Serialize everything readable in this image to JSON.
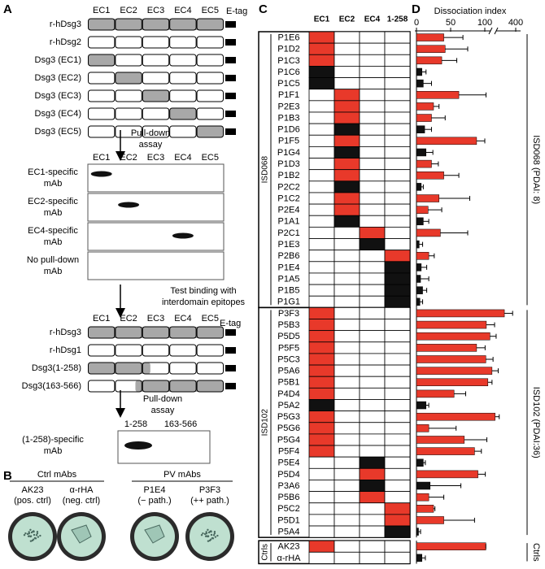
{
  "panel_labels": [
    "A",
    "B",
    "C",
    "D"
  ],
  "panel_a": {
    "domains": [
      "EC1",
      "EC2",
      "EC3",
      "EC4",
      "EC5"
    ],
    "tag": "E-tag",
    "constructs": [
      "r-hDsg3",
      "r-hDsg2",
      "Dsg3 (EC1)",
      "Dsg3 (EC2)",
      "Dsg3 (EC3)",
      "Dsg3 (EC4)",
      "Dsg3 (EC5)"
    ],
    "step1": [
      "Pull-down",
      "assay"
    ],
    "blot_rows": [
      [
        "EC1-specific",
        "mAb"
      ],
      [
        "EC2-specific",
        "mAb"
      ],
      [
        "EC4-specific",
        "mAb"
      ],
      [
        "No pull-down",
        "mAb"
      ]
    ],
    "step2": [
      "Test binding with",
      "interdomain epitopes"
    ],
    "constructs2": [
      "r-hDsg3",
      "r-hDsg1",
      "Dsg3(1-258)",
      "Dsg3(163-566)"
    ],
    "step3": [
      "Pull-down",
      "assay"
    ],
    "blot2_lanes": [
      "1-258",
      "163-566"
    ],
    "blot2_row": [
      "(1-258)-specific",
      "mAb"
    ]
  },
  "panel_b": [
    {
      "title": "Ctrl mAbs",
      "dishes": [
        {
          "name": "AK23",
          "note": "(pos. ctrl)"
        },
        {
          "name": "α-rHA",
          "note": "(neg. ctrl)"
        }
      ]
    },
    {
      "title": "PV mAbs",
      "dishes": [
        {
          "name": "P1E4",
          "note": "(− path.)"
        },
        {
          "name": "P3F3",
          "note": "(++ path.)"
        }
      ]
    }
  ],
  "panel_c": {
    "columns": [
      "EC1",
      "EC2",
      "EC4",
      "1-258"
    ]
  },
  "panel_d": {
    "title": "Dissociation index",
    "ticks": [
      0,
      50,
      100,
      400
    ]
  },
  "groups": [
    {
      "name": "ISD068",
      "label": "ISD068 (PDAI: 8)",
      "rows": [
        {
          "name": "P1E6",
          "epitope": "EC1",
          "color": "#e8392a",
          "index": 40,
          "error": 28
        },
        {
          "name": "P1D2",
          "epitope": "EC1",
          "color": "#e8392a",
          "index": 42,
          "error": 33
        },
        {
          "name": "P1C3",
          "epitope": "EC1",
          "color": "#e8392a",
          "index": 37,
          "error": 22
        },
        {
          "name": "P1C6",
          "epitope": "EC1",
          "color": "#111111",
          "index": 8,
          "error": 6
        },
        {
          "name": "P1C5",
          "epitope": "EC1",
          "color": "#111111",
          "index": 10,
          "error": 12
        },
        {
          "name": "P1F1",
          "epitope": "EC2",
          "color": "#e8392a",
          "index": 62,
          "error": 50
        },
        {
          "name": "P2E3",
          "epitope": "EC2",
          "color": "#e8392a",
          "index": 25,
          "error": 8
        },
        {
          "name": "P1B3",
          "epitope": "EC2",
          "color": "#e8392a",
          "index": 22,
          "error": 20
        },
        {
          "name": "P1D6",
          "epitope": "EC2",
          "color": "#111111",
          "index": 12,
          "error": 10
        },
        {
          "name": "P1F5",
          "epitope": "EC2",
          "color": "#e8392a",
          "index": 88,
          "error": 12
        },
        {
          "name": "P1G4",
          "epitope": "EC2",
          "color": "#111111",
          "index": 14,
          "error": 10
        },
        {
          "name": "P1D3",
          "epitope": "EC2",
          "color": "#e8392a",
          "index": 22,
          "error": 10
        },
        {
          "name": "P1B2",
          "epitope": "EC2",
          "color": "#e8392a",
          "index": 40,
          "error": 22
        },
        {
          "name": "P2C2",
          "epitope": "EC2",
          "color": "#111111",
          "index": 7,
          "error": 3
        },
        {
          "name": "P1C2",
          "epitope": "EC2",
          "color": "#e8392a",
          "index": 33,
          "error": 45
        },
        {
          "name": "P2E4",
          "epitope": "EC2",
          "color": "#e8392a",
          "index": 17,
          "error": 20
        },
        {
          "name": "P1A1",
          "epitope": "EC2",
          "color": "#111111",
          "index": 10,
          "error": 8
        },
        {
          "name": "P2C1",
          "epitope": "EC4",
          "color": "#e8392a",
          "index": 35,
          "error": 40
        },
        {
          "name": "P1E3",
          "epitope": "EC4",
          "color": "#111111",
          "index": 4,
          "error": 5
        },
        {
          "name": "P2B6",
          "epitope": "1-258",
          "color": "#e8392a",
          "index": 18,
          "error": 8
        },
        {
          "name": "P1E4",
          "epitope": "1-258",
          "color": "#111111",
          "index": 7,
          "error": 8
        },
        {
          "name": "P1A5",
          "epitope": "1-258",
          "color": "#111111",
          "index": 6,
          "error": 12
        },
        {
          "name": "P1B5",
          "epitope": "1-258",
          "color": "#111111",
          "index": 9,
          "error": 6
        },
        {
          "name": "P1G1",
          "epitope": "1-258",
          "color": "#111111",
          "index": 5,
          "error": 4
        }
      ]
    },
    {
      "name": "ISD102",
      "label": "ISD102 (PDAI:36)",
      "rows": [
        {
          "name": "P3F3",
          "epitope": "EC1",
          "color": "#e8392a",
          "index": 290,
          "error": 80
        },
        {
          "name": "P5B3",
          "epitope": "EC1",
          "color": "#e8392a",
          "index": 115,
          "error": 80
        },
        {
          "name": "P5D5",
          "epitope": "EC1",
          "color": "#e8392a",
          "index": 150,
          "error": 60
        },
        {
          "name": "P5F5",
          "epitope": "EC1",
          "color": "#e8392a",
          "index": 88,
          "error": 15
        },
        {
          "name": "P5C3",
          "epitope": "EC1",
          "color": "#e8392a",
          "index": 110,
          "error": 70
        },
        {
          "name": "P5A6",
          "epitope": "EC1",
          "color": "#e8392a",
          "index": 170,
          "error": 60
        },
        {
          "name": "P5B1",
          "epitope": "EC1",
          "color": "#e8392a",
          "index": 130,
          "error": 40
        },
        {
          "name": "P4D4",
          "epitope": "EC1",
          "color": "#e8392a",
          "index": 55,
          "error": 17
        },
        {
          "name": "P5A2",
          "epitope": "EC1",
          "color": "#111111",
          "index": 14,
          "error": 4
        },
        {
          "name": "P5G3",
          "epitope": "EC1",
          "color": "#e8392a",
          "index": 200,
          "error": 40
        },
        {
          "name": "P5G6",
          "epitope": "EC1",
          "color": "#e8392a",
          "index": 18,
          "error": 40
        },
        {
          "name": "P5G4",
          "epitope": "EC1",
          "color": "#e8392a",
          "index": 70,
          "error": 50
        },
        {
          "name": "P5F4",
          "epitope": "EC1",
          "color": "#e8392a",
          "index": 85,
          "error": 10
        },
        {
          "name": "P5E4",
          "epitope": "EC4",
          "color": "#111111",
          "index": 10,
          "error": 3
        },
        {
          "name": "P5D4",
          "epitope": "EC4",
          "color": "#e8392a",
          "index": 90,
          "error": 15
        },
        {
          "name": "P3A6",
          "epitope": "EC4",
          "color": "#111111",
          "index": 20,
          "error": 45
        },
        {
          "name": "P5B6",
          "epitope": "EC4",
          "color": "#e8392a",
          "index": 18,
          "error": 22
        },
        {
          "name": "P5C2",
          "epitope": "1-258",
          "color": "#e8392a",
          "index": 25,
          "error": 2
        },
        {
          "name": "P5D1",
          "epitope": "1-258",
          "color": "#e8392a",
          "index": 40,
          "error": 45
        },
        {
          "name": "P5A4",
          "epitope": "1-258",
          "color": "#111111",
          "index": 3,
          "error": 3
        }
      ]
    },
    {
      "name": "Ctrls",
      "label": "Ctrls",
      "rows": [
        {
          "name": "AK23",
          "epitope": "EC1",
          "color": "#e8392a",
          "index": 110,
          "error": 0
        },
        {
          "name": "α-rHA",
          "epitope": null,
          "color": "#111111",
          "index": 8,
          "error": 5
        }
      ]
    }
  ]
}
